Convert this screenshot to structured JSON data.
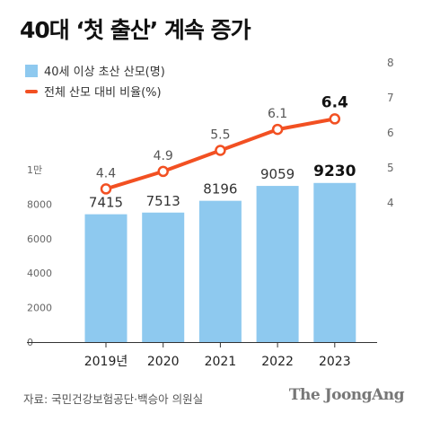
{
  "title": "40대 ‘첫 출산’ 계속 증가",
  "source": "자료: 국민건강보험공단·백승아 의원실",
  "logo_text": "The JoongAng",
  "colors": {
    "bar": "#8ec9ef",
    "line": "#f25022",
    "text": "#333333"
  },
  "chart_data": {
    "type": "bar",
    "categories": [
      "2019년",
      "2020",
      "2021",
      "2022",
      "2023"
    ],
    "series": [
      {
        "name": "40세 이상 초산 산모(명)",
        "type": "bar",
        "axis": "left",
        "values": [
          7415,
          7513,
          8196,
          9059,
          9230
        ],
        "labels": [
          "7415",
          "7513",
          "8196",
          "9059",
          "9230"
        ]
      },
      {
        "name": "전체 산모 대비 비율(%)",
        "type": "line",
        "axis": "right",
        "values": [
          4.4,
          4.9,
          5.5,
          6.1,
          6.4
        ],
        "labels": [
          "4.4",
          "4.9",
          "5.5",
          "6.1",
          "6.4"
        ]
      }
    ],
    "left_axis": {
      "ylim": [
        0,
        10000
      ],
      "ticks": [
        "0",
        "2000",
        "4000",
        "6000",
        "8000",
        "1만"
      ]
    },
    "right_axis": {
      "ylim": [
        2,
        8
      ],
      "ticks": [
        "4",
        "5",
        "6",
        "7",
        "8"
      ]
    },
    "grid": false,
    "legend_position": "top-left"
  }
}
